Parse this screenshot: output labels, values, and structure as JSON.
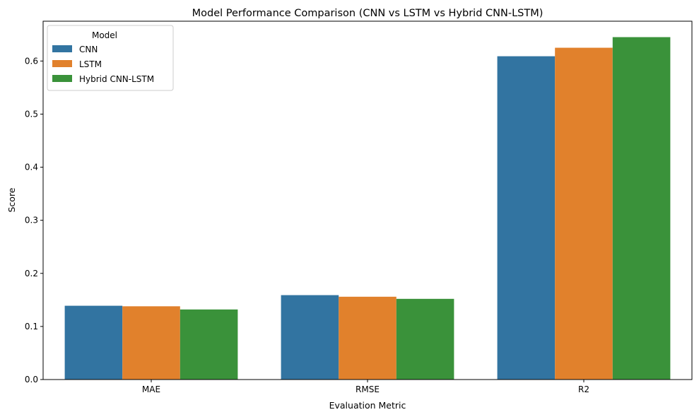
{
  "chart_data": {
    "type": "bar",
    "title": "Model Performance Comparison (CNN vs LSTM vs Hybrid CNN-LSTM)",
    "xlabel": "Evaluation Metric",
    "ylabel": "Score",
    "categories": [
      "MAE",
      "RMSE",
      "R2"
    ],
    "series": [
      {
        "name": "CNN",
        "color": "#3274a1",
        "values": [
          0.139,
          0.159,
          0.609
        ]
      },
      {
        "name": "LSTM",
        "color": "#e1812c",
        "values": [
          0.138,
          0.156,
          0.625
        ]
      },
      {
        "name": "Hybrid CNN-LSTM",
        "color": "#3a923a",
        "values": [
          0.132,
          0.152,
          0.645
        ]
      }
    ],
    "ylim": [
      0,
      0.675
    ],
    "yticks": [
      "0.0",
      "0.1",
      "0.2",
      "0.3",
      "0.4",
      "0.5",
      "0.6"
    ],
    "grid": false,
    "legend": {
      "title": "Model",
      "position": "top-left"
    }
  }
}
